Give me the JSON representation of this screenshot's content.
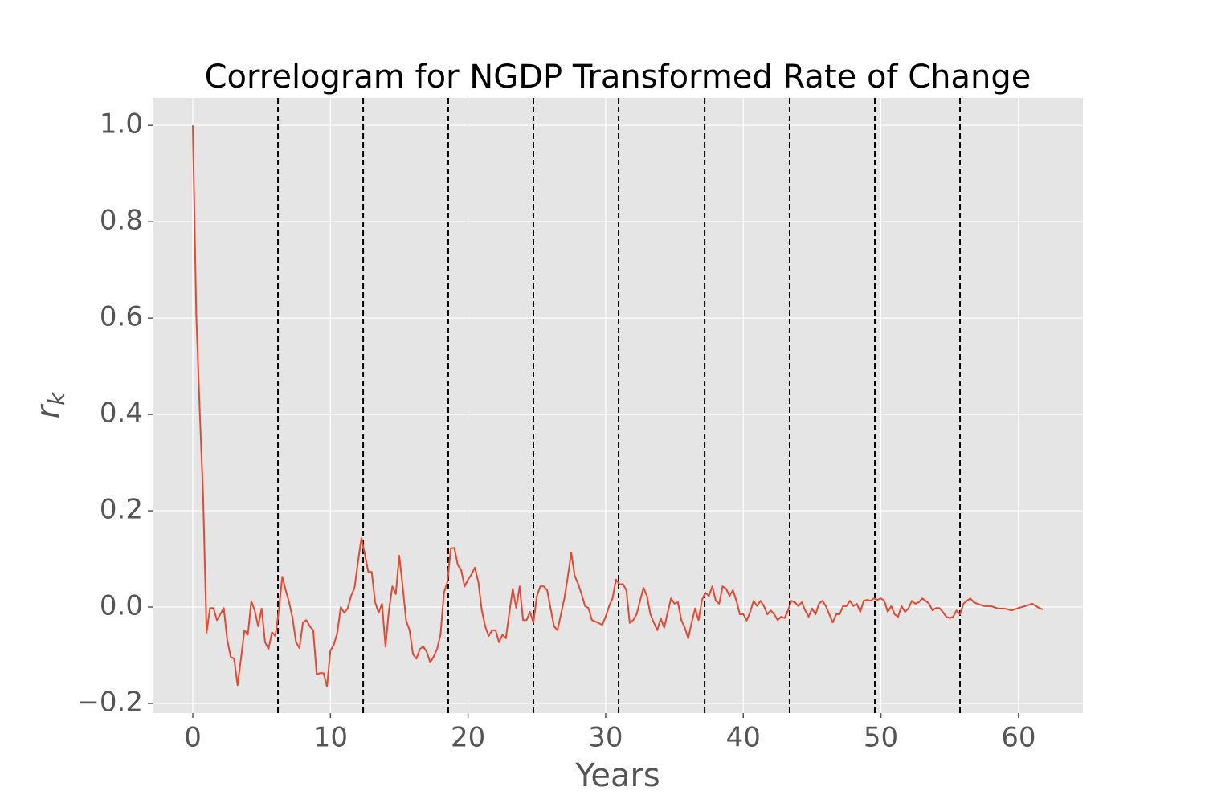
{
  "chart_data": {
    "type": "line",
    "title": "Correlogram for NGDP Transformed Rate of Change",
    "xlabel": "Years",
    "ylabel": [
      "r",
      "k"
    ],
    "color": "#e24a33",
    "vline_color": "#000000",
    "grid": true,
    "xlim": [
      -2.92,
      64.68
    ],
    "ylim": [
      -0.22,
      1.057
    ],
    "xticks": [
      0,
      10,
      20,
      30,
      40,
      50,
      60
    ],
    "yticks": [
      {
        "value": -0.2,
        "label": "−0.2"
      },
      {
        "value": 0,
        "label": "0.0"
      },
      0.2,
      0.4,
      0.6,
      0.8,
      {
        "value": 1,
        "label": "1.0"
      }
    ],
    "vlines": [
      6.19,
      12.38,
      18.56,
      24.75,
      30.94,
      37.19,
      43.37,
      49.56,
      55.75
    ],
    "x": [
      0,
      0.25,
      0.5,
      0.75,
      1,
      1.25,
      1.5,
      1.75,
      2,
      2.25,
      2.5,
      2.75,
      3,
      3.25,
      3.5,
      3.75,
      4,
      4.25,
      4.5,
      4.75,
      5,
      5.25,
      5.5,
      5.75,
      6,
      6.25,
      6.5,
      6.75,
      7,
      7.25,
      7.5,
      7.75,
      8,
      8.25,
      8.5,
      8.75,
      9,
      9.25,
      9.5,
      9.75,
      10,
      10.25,
      10.5,
      10.75,
      11,
      11.25,
      11.5,
      11.75,
      12,
      12.25,
      12.5,
      12.75,
      13,
      13.25,
      13.5,
      13.75,
      14,
      14.25,
      14.5,
      14.75,
      15,
      15.25,
      15.5,
      15.75,
      16,
      16.25,
      16.5,
      16.75,
      17,
      17.25,
      17.5,
      17.75,
      18,
      18.25,
      18.5,
      18.75,
      19,
      19.25,
      19.5,
      19.75,
      20,
      20.25,
      20.5,
      20.75,
      21,
      21.25,
      21.5,
      21.75,
      22,
      22.25,
      22.5,
      22.75,
      23,
      23.25,
      23.5,
      23.75,
      24,
      24.25,
      24.5,
      24.75,
      25,
      25.25,
      25.5,
      25.75,
      26,
      26.25,
      26.5,
      26.75,
      27,
      27.25,
      27.5,
      27.75,
      28,
      28.25,
      28.5,
      28.75,
      29,
      29.5,
      29.75,
      30,
      30.25,
      30.5,
      30.75,
      31,
      31.25,
      31.5,
      31.75,
      32,
      32.25,
      32.5,
      32.75,
      33,
      33.25,
      33.5,
      33.75,
      34,
      34.25,
      34.5,
      34.75,
      35,
      35.25,
      35.5,
      35.75,
      36,
      36.25,
      36.5,
      36.75,
      37,
      37.25,
      37.5,
      37.75,
      38,
      38.25,
      38.5,
      38.75,
      39,
      39.25,
      39.5,
      39.75,
      40,
      40.25,
      40.5,
      40.75,
      41,
      41.25,
      41.5,
      41.75,
      42,
      42.25,
      42.5,
      42.75,
      43,
      43.25,
      43.5,
      43.75,
      44,
      44.25,
      44.5,
      44.75,
      45,
      45.25,
      45.5,
      45.75,
      46,
      46.25,
      46.5,
      46.75,
      47,
      47.25,
      47.5,
      47.75,
      48,
      48.25,
      48.5,
      48.75,
      49,
      49.25,
      49.5,
      49.75,
      50,
      50.25,
      50.5,
      50.75,
      51,
      51.25,
      51.5,
      51.75,
      52,
      52.25,
      52.5,
      52.75,
      53,
      53.25,
      53.5,
      53.75,
      54,
      54.25,
      54.5,
      54.75,
      55,
      55.25,
      55.5,
      55.75,
      56,
      56.25,
      56.5,
      56.75,
      57,
      57.5,
      58,
      58.5,
      59,
      59.5,
      60,
      60.5,
      61,
      61.5,
      61.75
    ],
    "values": [
      1.0,
      0.61,
      0.41,
      0.23,
      -0.053,
      -0.002,
      -0.002,
      -0.027,
      -0.015,
      -0.002,
      -0.068,
      -0.103,
      -0.107,
      -0.162,
      -0.107,
      -0.048,
      -0.057,
      0.012,
      -0.007,
      -0.04,
      -0.003,
      -0.073,
      -0.087,
      -0.052,
      -0.06,
      -0.007,
      0.063,
      0.035,
      0.01,
      -0.023,
      -0.073,
      -0.085,
      -0.032,
      -0.027,
      -0.04,
      -0.048,
      -0.14,
      -0.137,
      -0.137,
      -0.165,
      -0.09,
      -0.078,
      -0.053,
      0.0,
      -0.012,
      -0.003,
      0.023,
      0.04,
      0.093,
      0.143,
      0.11,
      0.073,
      0.073,
      0.01,
      -0.012,
      0.007,
      -0.082,
      -0.007,
      0.043,
      0.027,
      0.107,
      0.043,
      -0.028,
      -0.048,
      -0.098,
      -0.107,
      -0.087,
      -0.082,
      -0.093,
      -0.115,
      -0.103,
      -0.087,
      -0.057,
      0.03,
      0.052,
      0.122,
      0.123,
      0.088,
      0.077,
      0.043,
      0.057,
      0.068,
      0.082,
      0.052,
      -0.007,
      -0.04,
      -0.06,
      -0.048,
      -0.048,
      -0.073,
      -0.057,
      -0.065,
      -0.012,
      0.038,
      -0.002,
      0.043,
      -0.027,
      -0.027,
      -0.01,
      -0.032,
      0.023,
      0.043,
      0.043,
      0.035,
      -0.003,
      -0.04,
      -0.048,
      -0.015,
      0.018,
      0.063,
      0.113,
      0.065,
      0.048,
      0.027,
      0.002,
      -0.002,
      -0.027,
      -0.033,
      -0.037,
      -0.02,
      0.002,
      0.018,
      0.057,
      0.047,
      0.048,
      0.035,
      -0.033,
      -0.027,
      -0.015,
      0.013,
      0.04,
      0.023,
      -0.015,
      -0.032,
      -0.048,
      -0.023,
      -0.043,
      -0.012,
      0.018,
      0.007,
      0.01,
      -0.027,
      -0.043,
      -0.065,
      -0.032,
      -0.003,
      -0.027,
      0.015,
      0.03,
      0.023,
      0.043,
      0.013,
      0.007,
      0.043,
      0.038,
      0.023,
      0.035,
      0.013,
      -0.015,
      -0.015,
      -0.028,
      -0.01,
      0.013,
      0.002,
      0.013,
      0.002,
      -0.015,
      -0.007,
      -0.015,
      -0.027,
      -0.02,
      -0.023,
      -0.007,
      0.013,
      0.01,
      0.002,
      0.01,
      -0.007,
      -0.02,
      -0.003,
      -0.015,
      0.007,
      0.013,
      0.002,
      -0.015,
      -0.032,
      -0.015,
      -0.015,
      0.002,
      0.002,
      0.013,
      0.002,
      0.007,
      -0.01,
      0.013,
      0.015,
      0.013,
      0.018,
      0.015,
      0.018,
      0.013,
      -0.01,
      0.002,
      -0.015,
      -0.02,
      0.002,
      -0.01,
      -0.003,
      0.013,
      0.007,
      0.01,
      0.018,
      0.013,
      0.007,
      -0.007,
      -0.002,
      -0.002,
      -0.01,
      -0.02,
      -0.023,
      -0.02,
      -0.007,
      -0.015,
      0.007,
      0.013,
      0.018,
      0.01,
      0.007,
      0.002,
      0.002,
      -0.003,
      -0.003,
      -0.007,
      -0.002,
      0.002,
      0.007,
      -0.002,
      -0.005
    ]
  }
}
